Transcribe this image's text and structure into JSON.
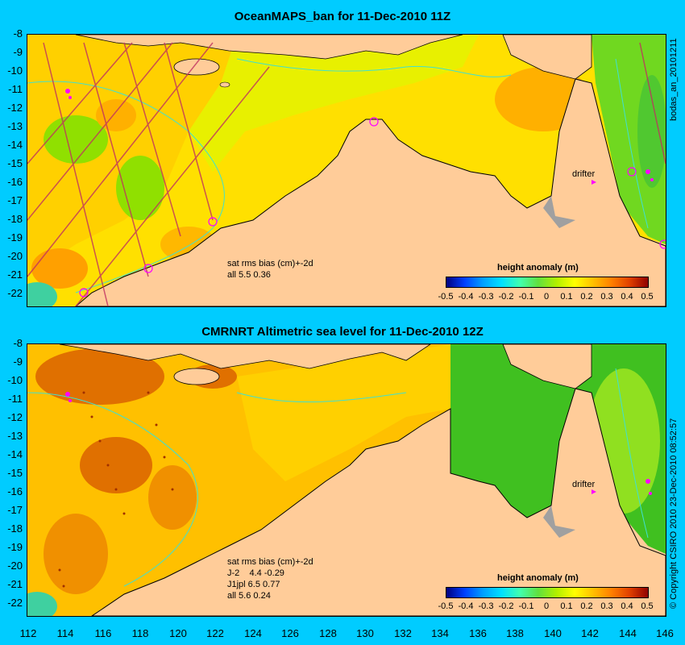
{
  "top_panel": {
    "title": "OceanMAPS_ban for 11-Dec-2010 11Z",
    "side_label": "bodas_an_20101211",
    "stats": [
      "sat rms bias (cm)+-2d",
      "all 5.5 0.36"
    ],
    "legend_title": "height anomaly (m)",
    "drifter_label": "drifter"
  },
  "bottom_panel": {
    "title": "CMRNRT Altimetric sea level  for 11-Dec-2010 12Z",
    "side_label": "© Copyright CSIRO 2010    23-Dec-2010 08:52:57",
    "stats": [
      "sat rms bias (cm)+-2d",
      "J-2    4.4 -0.29",
      "J1jpl 6.5 0.77",
      "all 5.6 0.24"
    ],
    "legend_title": "height anomaly (m)",
    "drifter_label": "drifter"
  },
  "y_axis_labels": [
    "-8",
    "-9",
    "-10",
    "-11",
    "-12",
    "-13",
    "-14",
    "-15",
    "-16",
    "-17",
    "-18",
    "-19",
    "-20",
    "-21",
    "-22"
  ],
  "x_axis_labels": [
    "112",
    "114",
    "116",
    "118",
    "120",
    "122",
    "124",
    "126",
    "128",
    "130",
    "132",
    "134",
    "136",
    "138",
    "140",
    "142",
    "144",
    "146"
  ],
  "colorbar_labels": [
    "-0.5",
    "-0.4",
    "-0.3",
    "-0.2",
    "-0.1",
    "0",
    "0.1",
    "0.2",
    "0.3",
    "0.4",
    "0.5"
  ],
  "colors": {
    "background": "#00ccff",
    "land": "#ffcc99",
    "colorbar": [
      "#000080",
      "#0040ff",
      "#00a0ff",
      "#00e0ff",
      "#40ffb0",
      "#60e040",
      "#b0f000",
      "#ffff00",
      "#ffc000",
      "#ff8000",
      "#e04000",
      "#900000"
    ]
  }
}
